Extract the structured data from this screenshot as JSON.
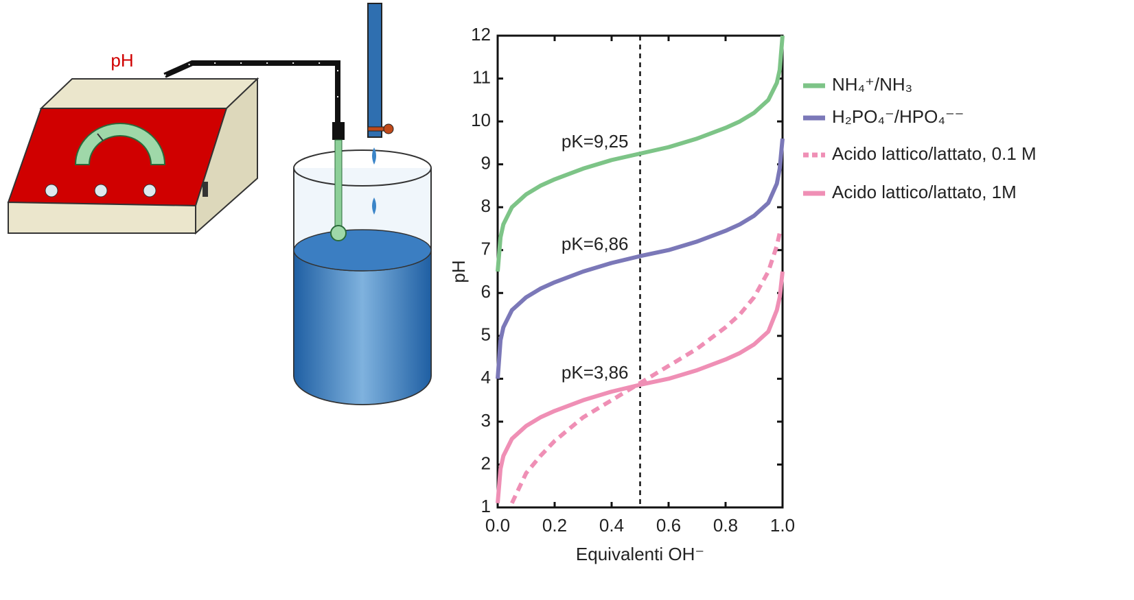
{
  "illustration": {
    "label": "pH"
  },
  "chart_data": {
    "type": "line",
    "x_label": "Equivalenti OH⁻",
    "y_label": "pH",
    "x": [
      0,
      0.01,
      0.02,
      0.05,
      0.1,
      0.15,
      0.2,
      0.3,
      0.4,
      0.5,
      0.6,
      0.7,
      0.8,
      0.85,
      0.9,
      0.95,
      0.98,
      0.99,
      1.0
    ],
    "series": [
      {
        "name": "NH₄⁺/NH₃",
        "color": "#7dc487",
        "dash": false,
        "values": [
          6.5,
          7.3,
          7.6,
          8.0,
          8.3,
          8.5,
          8.65,
          8.9,
          9.1,
          9.25,
          9.4,
          9.6,
          9.85,
          10.0,
          10.2,
          10.5,
          10.9,
          11.2,
          12
        ]
      },
      {
        "name": "H₂PO₄⁻/HPO₄⁻⁻",
        "color": "#7b78b8",
        "dash": false,
        "values": [
          4.0,
          4.9,
          5.2,
          5.6,
          5.9,
          6.1,
          6.25,
          6.5,
          6.7,
          6.86,
          7.0,
          7.2,
          7.45,
          7.6,
          7.8,
          8.1,
          8.55,
          8.9,
          9.6
        ]
      },
      {
        "name": "Acido lattico/lattato, 0.1 M",
        "color": "#ef8fb5",
        "dash": true,
        "values": [
          null,
          null,
          null,
          1.1,
          1.8,
          2.2,
          2.55,
          3.1,
          3.5,
          3.9,
          4.3,
          4.7,
          5.2,
          5.5,
          5.9,
          6.5,
          7.1,
          7.4,
          null
        ]
      },
      {
        "name": "Acido lattico/lattato, 1M",
        "color": "#ef8fb5",
        "dash": false,
        "values": [
          1.1,
          1.9,
          2.2,
          2.6,
          2.9,
          3.1,
          3.25,
          3.5,
          3.7,
          3.86,
          4.0,
          4.2,
          4.45,
          4.6,
          4.8,
          5.1,
          5.6,
          5.9,
          6.5
        ]
      }
    ],
    "annotations": [
      {
        "text": "pK=9,25",
        "x": 0.5,
        "y": 9.25
      },
      {
        "text": "pK=6,86",
        "x": 0.5,
        "y": 6.86
      },
      {
        "text": "pK=3,86",
        "x": 0.5,
        "y": 3.86
      }
    ],
    "vline": 0.5,
    "xlim": [
      0,
      1
    ],
    "ylim": [
      1,
      12
    ],
    "xticks": [
      {
        "value": 0,
        "label": "0.0"
      },
      0.2,
      0.4,
      0.6,
      0.8,
      {
        "value": 1,
        "label": "1.0"
      }
    ],
    "yticks": [
      1,
      2,
      3,
      4,
      5,
      6,
      7,
      8,
      9,
      10,
      11,
      12
    ]
  }
}
